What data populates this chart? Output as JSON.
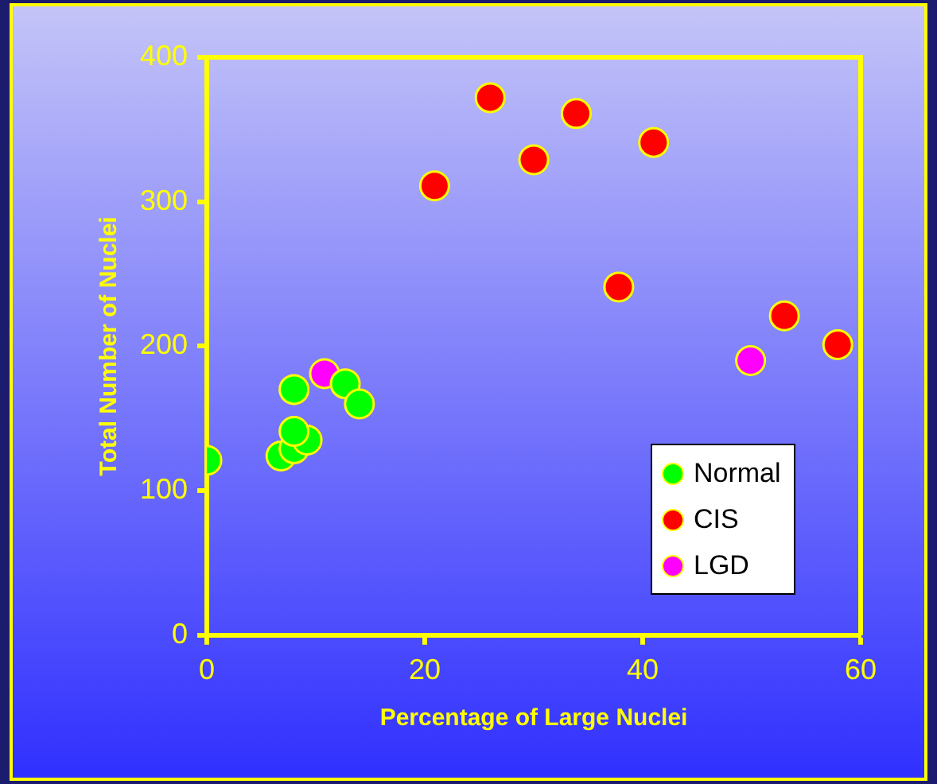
{
  "chart_data": {
    "type": "scatter",
    "xlabel": "Percentage of Large Nuclei",
    "ylabel": "Total Number of Nuclei",
    "xlim": [
      0,
      60
    ],
    "xticks": [
      0,
      20,
      40,
      60
    ],
    "ylim": [
      0,
      400
    ],
    "yticks": [
      0,
      100,
      200,
      300,
      400
    ],
    "grid": false,
    "legend": "bottom right",
    "marker": "circle",
    "series": [
      {
        "name": "Normal",
        "color": "#00ff00",
        "x": [
          0,
          8,
          6.8,
          8,
          9.2,
          8,
          12.7,
          14
        ],
        "values": [
          121,
          170,
          124,
          129,
          135,
          141,
          174,
          160
        ]
      },
      {
        "name": "CIS",
        "color": "#ff0000",
        "x": [
          20.9,
          26,
          30,
          33.9,
          41,
          37.8,
          53,
          57.9
        ],
        "values": [
          311,
          372,
          329,
          361,
          341,
          241,
          221,
          201
        ]
      },
      {
        "name": "LGD",
        "color": "#ff00ff",
        "x": [
          10.8,
          49.9
        ],
        "values": [
          181,
          190
        ]
      }
    ]
  }
}
